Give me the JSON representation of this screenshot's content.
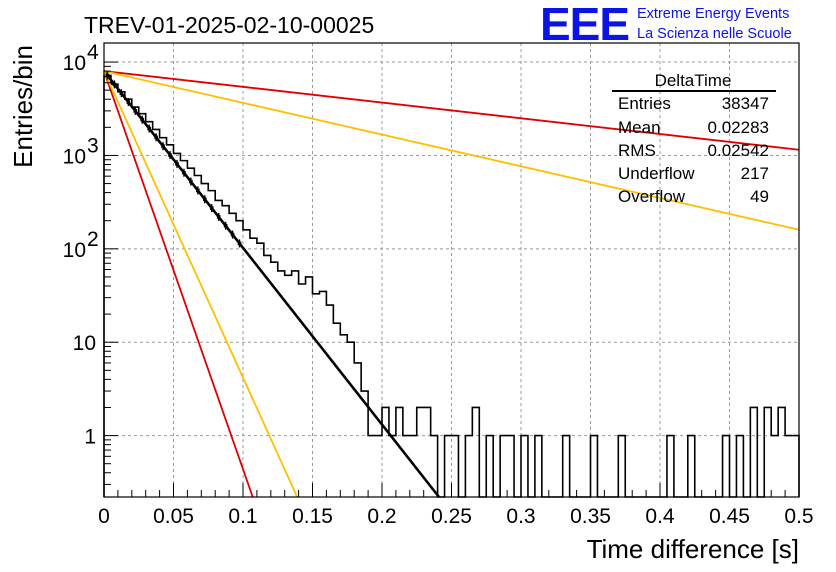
{
  "header": {
    "title": "TREV-01-2025-02-10-00025",
    "logo_text": "EEE",
    "logo_line1": "Extreme Energy Events",
    "logo_line2": "La Scienza nelle Scuole"
  },
  "stats_box": {
    "name": "DeltaTime",
    "rows": [
      {
        "label": "Entries",
        "value": "38347"
      },
      {
        "label": "Mean",
        "value": "0.02283"
      },
      {
        "label": "RMS",
        "value": "0.02542"
      },
      {
        "label": "Underflow",
        "value": "217"
      },
      {
        "label": "Overflow",
        "value": "49"
      }
    ]
  },
  "colors": {
    "histogram": "#000000",
    "fit": "#000000",
    "red": "#e00000",
    "orange": "#ffbf00",
    "logo": "#0a14e6",
    "grid": "#999999"
  },
  "chart_data": {
    "type": "line",
    "title": "TREV-01-2025-02-10-00025",
    "xlabel": "Time difference [s]",
    "ylabel": "Entries/bin",
    "xlim": [
      0,
      0.5
    ],
    "ylim": [
      0.22,
      16000
    ],
    "yscale": "log",
    "grid": true,
    "xticks": [
      0,
      0.05,
      0.1,
      0.15,
      0.2,
      0.25,
      0.3,
      0.35,
      0.4,
      0.45,
      0.5
    ],
    "xtick_labels": [
      "0",
      "0.05",
      "0.1",
      "0.15",
      "0.2",
      "0.25",
      "0.3",
      "0.35",
      "0.4",
      "0.45",
      "0.5"
    ],
    "yticks": [
      1,
      10,
      100,
      1000,
      10000
    ],
    "ytick_labels": [
      {
        "base": "",
        "exp": "",
        "plain": "1"
      },
      {
        "base": "",
        "exp": "",
        "plain": "10"
      },
      {
        "base": "10",
        "exp": "2",
        "plain": ""
      },
      {
        "base": "10",
        "exp": "3",
        "plain": ""
      },
      {
        "base": "10",
        "exp": "4",
        "plain": ""
      }
    ],
    "histogram": {
      "name": "DeltaTime",
      "bin_width": 0.005,
      "bins": [
        [
          0.0,
          7200
        ],
        [
          0.005,
          5800
        ],
        [
          0.01,
          4800
        ],
        [
          0.015,
          4000
        ],
        [
          0.02,
          3300
        ],
        [
          0.025,
          2800
        ],
        [
          0.03,
          2300
        ],
        [
          0.035,
          1900
        ],
        [
          0.04,
          1550
        ],
        [
          0.045,
          1300
        ],
        [
          0.05,
          1050
        ],
        [
          0.055,
          880
        ],
        [
          0.06,
          730
        ],
        [
          0.065,
          610
        ],
        [
          0.07,
          500
        ],
        [
          0.075,
          420
        ],
        [
          0.08,
          330
        ],
        [
          0.085,
          290
        ],
        [
          0.09,
          240
        ],
        [
          0.095,
          200
        ],
        [
          0.1,
          160
        ],
        [
          0.105,
          130
        ],
        [
          0.11,
          115
        ],
        [
          0.115,
          85
        ],
        [
          0.12,
          72
        ],
        [
          0.125,
          58
        ],
        [
          0.13,
          52
        ],
        [
          0.135,
          58
        ],
        [
          0.14,
          42
        ],
        [
          0.145,
          50
        ],
        [
          0.15,
          33
        ],
        [
          0.155,
          35
        ],
        [
          0.16,
          25
        ],
        [
          0.165,
          16
        ],
        [
          0.17,
          12
        ],
        [
          0.175,
          10
        ],
        [
          0.18,
          6
        ],
        [
          0.185,
          3
        ],
        [
          0.19,
          1
        ],
        [
          0.195,
          1
        ],
        [
          0.2,
          2
        ],
        [
          0.205,
          1
        ],
        [
          0.21,
          2
        ],
        [
          0.215,
          1
        ],
        [
          0.22,
          1
        ],
        [
          0.225,
          2
        ],
        [
          0.23,
          2
        ],
        [
          0.235,
          1
        ],
        [
          0.24,
          0
        ],
        [
          0.245,
          1
        ],
        [
          0.25,
          1
        ],
        [
          0.255,
          0
        ],
        [
          0.26,
          1
        ],
        [
          0.265,
          2
        ],
        [
          0.27,
          0
        ],
        [
          0.275,
          1
        ],
        [
          0.28,
          0
        ],
        [
          0.285,
          1
        ],
        [
          0.29,
          1
        ],
        [
          0.295,
          0
        ],
        [
          0.3,
          1
        ],
        [
          0.305,
          0
        ],
        [
          0.31,
          1
        ],
        [
          0.315,
          0
        ],
        [
          0.32,
          0
        ],
        [
          0.325,
          0
        ],
        [
          0.33,
          1
        ],
        [
          0.335,
          0
        ],
        [
          0.34,
          0
        ],
        [
          0.345,
          0
        ],
        [
          0.35,
          1
        ],
        [
          0.355,
          0
        ],
        [
          0.36,
          0
        ],
        [
          0.365,
          0
        ],
        [
          0.37,
          1
        ],
        [
          0.375,
          0
        ],
        [
          0.38,
          0
        ],
        [
          0.385,
          0
        ],
        [
          0.39,
          0
        ],
        [
          0.395,
          0
        ],
        [
          0.4,
          0
        ],
        [
          0.405,
          1
        ],
        [
          0.41,
          0
        ],
        [
          0.415,
          0
        ],
        [
          0.42,
          1
        ],
        [
          0.425,
          0
        ],
        [
          0.43,
          0
        ],
        [
          0.435,
          0
        ],
        [
          0.44,
          0
        ],
        [
          0.445,
          1
        ],
        [
          0.45,
          0
        ],
        [
          0.455,
          1
        ],
        [
          0.46,
          0
        ],
        [
          0.465,
          2
        ],
        [
          0.47,
          0
        ],
        [
          0.475,
          2
        ],
        [
          0.48,
          1
        ],
        [
          0.485,
          2
        ],
        [
          0.49,
          1
        ],
        [
          0.495,
          1
        ]
      ]
    },
    "series": [
      {
        "color": "#000000",
        "kind": "fit",
        "x": [
          0,
          0.241
        ],
        "y": [
          8000,
          0.22
        ]
      },
      {
        "color": "#e00000",
        "kind": "exp",
        "x": [
          0,
          0.107
        ],
        "y": [
          8000,
          0.22
        ]
      },
      {
        "color": "#ffbf00",
        "kind": "exp",
        "x": [
          0,
          0.139
        ],
        "y": [
          8000,
          0.22
        ]
      },
      {
        "color": "#e00000",
        "kind": "exp",
        "x": [
          0,
          0.5
        ],
        "y": [
          8000,
          1150
        ]
      },
      {
        "color": "#ffbf00",
        "kind": "exp",
        "x": [
          0,
          0.5
        ],
        "y": [
          8000,
          160
        ]
      }
    ],
    "fit_markers_x": [
      0.0025,
      0.0075,
      0.0125,
      0.0175,
      0.0225,
      0.0275,
      0.0325,
      0.0375,
      0.0425,
      0.0475,
      0.0525,
      0.0575,
      0.0625,
      0.0675,
      0.0725,
      0.0775,
      0.0825,
      0.0875,
      0.0925,
      0.0975
    ]
  }
}
